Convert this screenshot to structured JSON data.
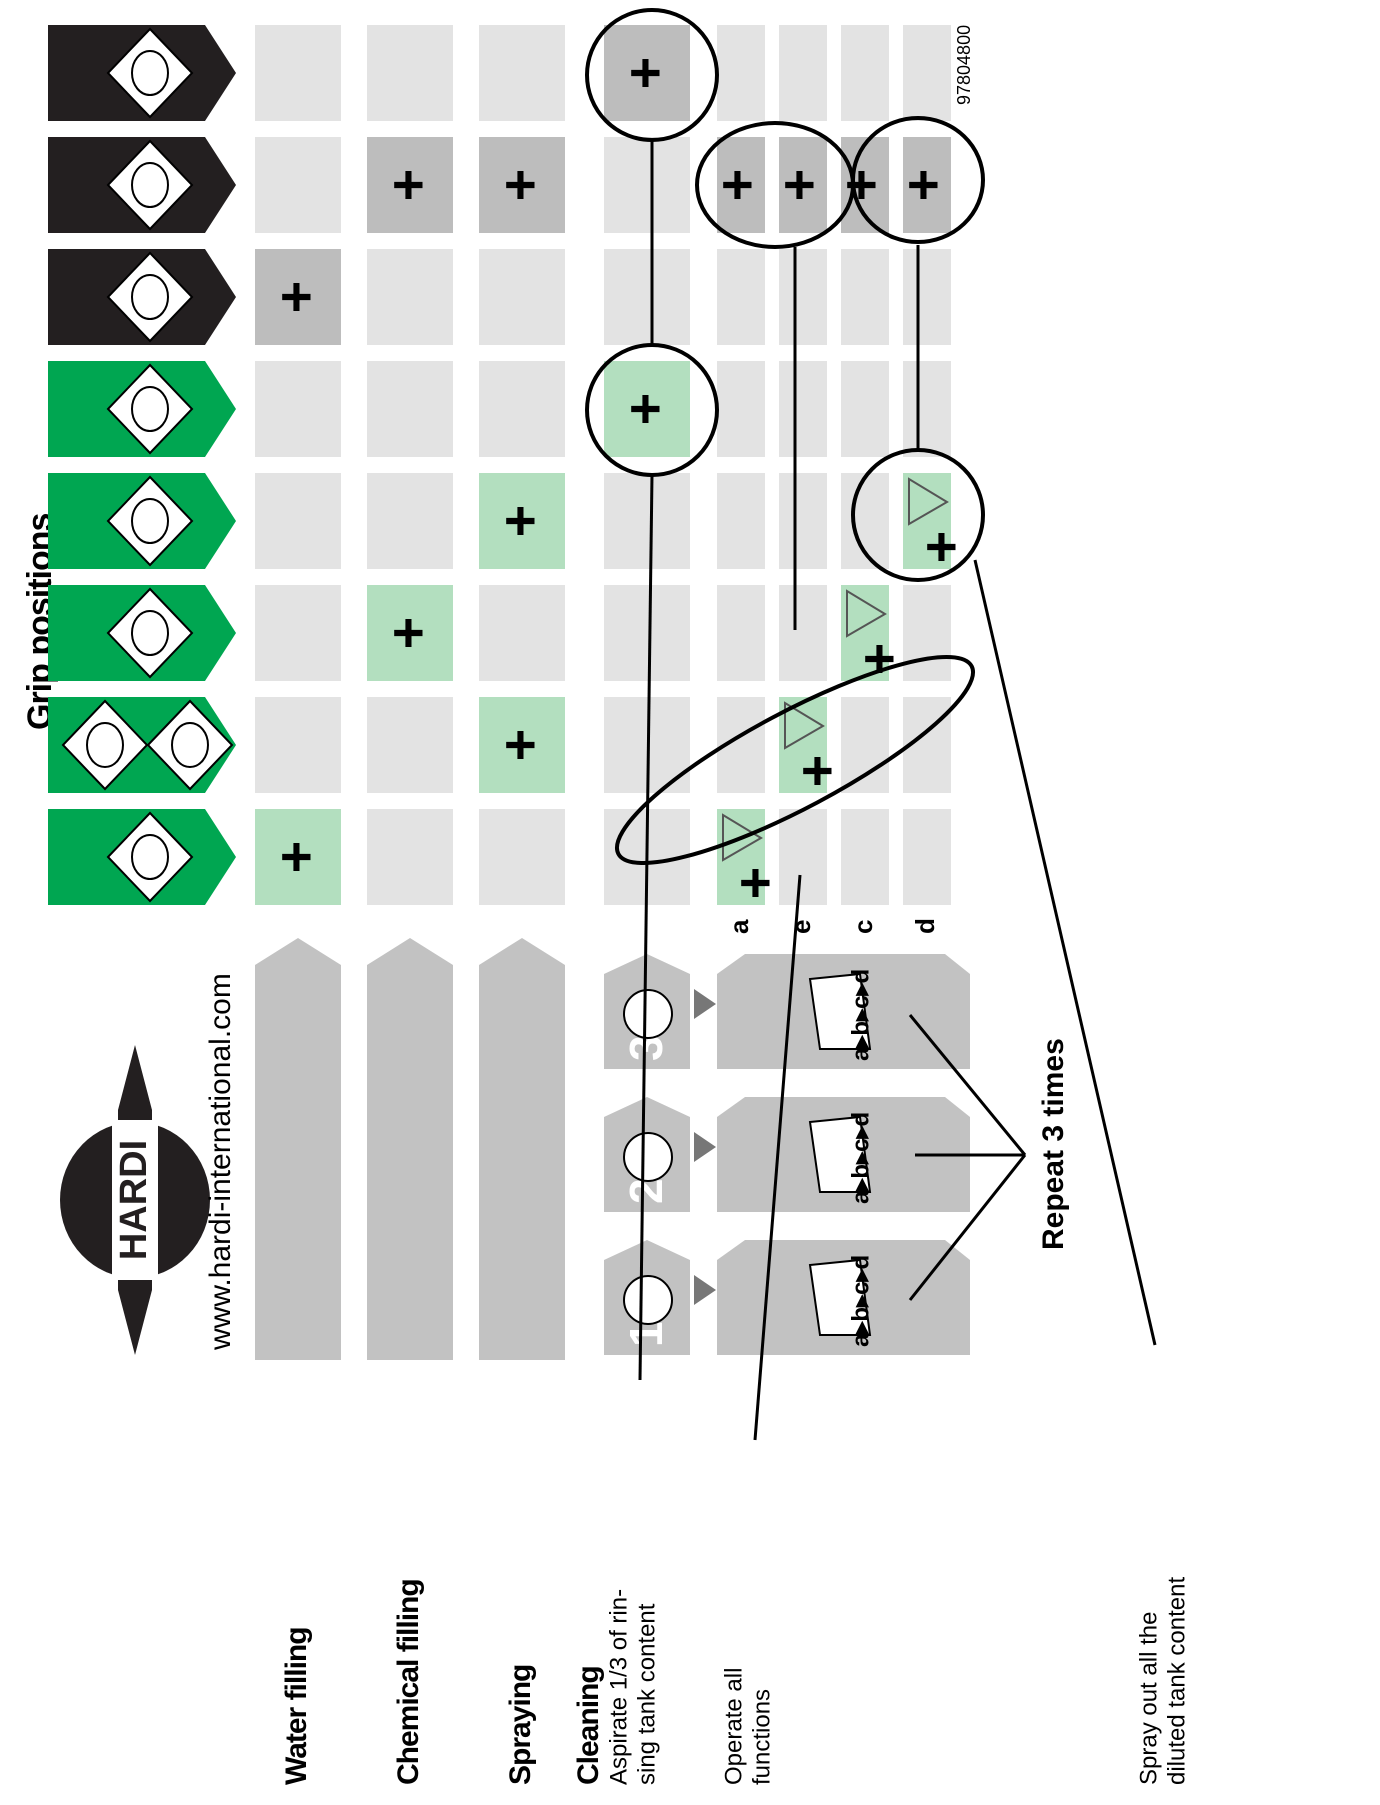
{
  "header": {
    "title": "Grip positions",
    "logo": "HARDI",
    "url": "www.hardi-international.com",
    "doc_number": "97804800"
  },
  "rows": [
    {
      "label": "Water filling",
      "cells": [
        "+",
        null,
        null,
        null,
        null,
        "+",
        null,
        null
      ]
    },
    {
      "label": "Chemical filling",
      "cells": [
        null,
        null,
        "+",
        null,
        null,
        null,
        "+",
        null
      ]
    },
    {
      "label": "Spraying",
      "cells": [
        null,
        "+",
        null,
        "+",
        null,
        null,
        "+",
        null
      ]
    },
    {
      "label": "Cleaning",
      "note": [
        "Aspirate 1/3 of rin-",
        "sing tank content"
      ],
      "cells": [
        null,
        null,
        null,
        null,
        "+",
        null,
        null,
        "+"
      ]
    }
  ],
  "cleaning_steps": [
    {
      "number": "1",
      "sequence": "a▸b▸c▸d"
    },
    {
      "number": "2",
      "sequence": "a▸b▸c▸d"
    },
    {
      "number": "3",
      "sequence": "a▸b▸c▸d"
    }
  ],
  "sub_rows": [
    {
      "label": "a",
      "cells": [
        "+",
        null,
        null,
        null,
        null,
        null,
        "+",
        null
      ]
    },
    {
      "label": "e",
      "cells": [
        null,
        "+",
        null,
        null,
        null,
        null,
        "+",
        null
      ]
    },
    {
      "label": "c",
      "cells": [
        null,
        null,
        "+",
        null,
        null,
        null,
        "+",
        null
      ]
    },
    {
      "label": "d",
      "cells": [
        null,
        null,
        null,
        "+",
        null,
        null,
        "+",
        null
      ]
    }
  ],
  "annotations": {
    "repeat": "Repeat 3 times",
    "operate": [
      "Operate all",
      "functions"
    ],
    "spray_out": [
      "Spray out all the",
      "diluted tank content"
    ]
  }
}
